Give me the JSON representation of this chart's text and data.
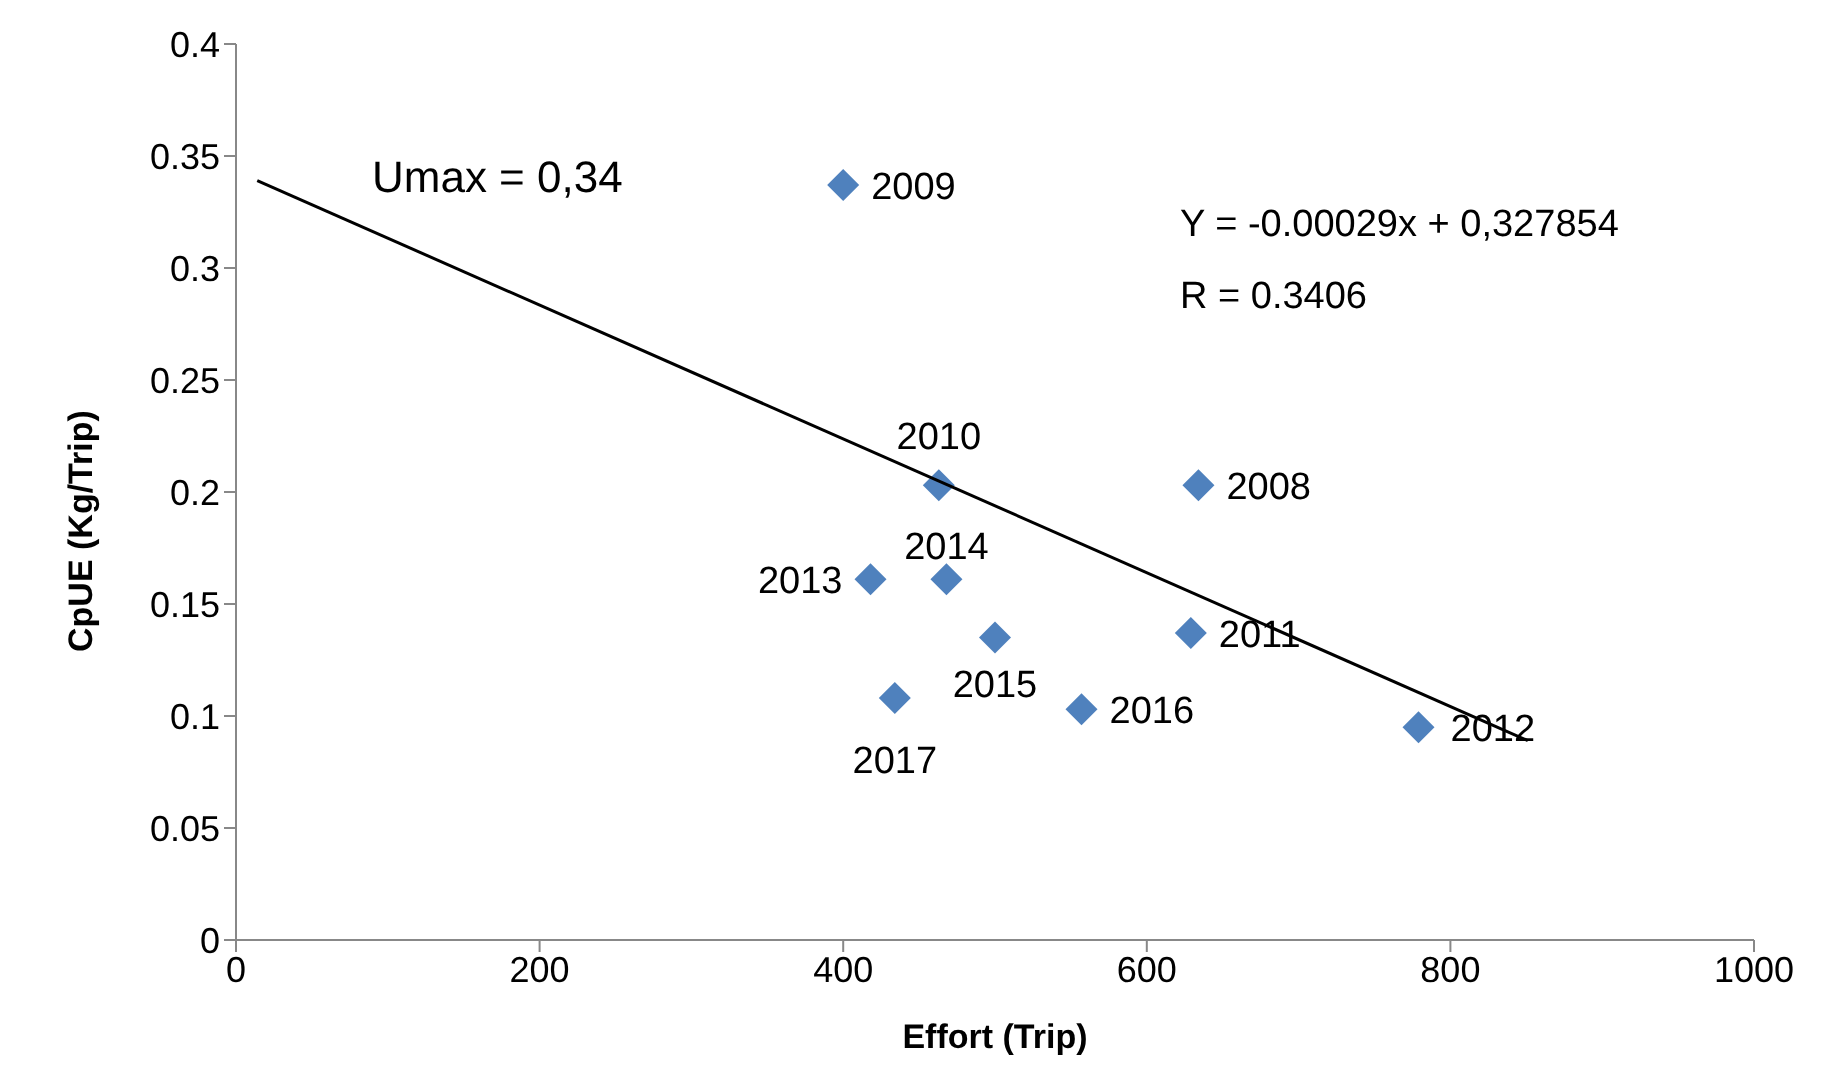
{
  "chart_data": {
    "type": "scatter",
    "xlabel": "Effort (Trip)",
    "ylabel": "CpUE (Kg/Trip)",
    "x": [
      400,
      463,
      634,
      418,
      468,
      500,
      629,
      434,
      557,
      779
    ],
    "values": [
      0.337,
      0.203,
      0.203,
      0.161,
      0.161,
      0.135,
      0.137,
      0.108,
      0.103,
      0.095
    ],
    "color": "#4f81bd",
    "marker": "diamond",
    "series": [
      {
        "type": "line",
        "x": [
          14,
          851
        ],
        "values": [
          0.339,
          0.089
        ],
        "color": "#000000",
        "marker": "none"
      }
    ],
    "xlim": [
      0,
      1000
    ],
    "xticks": [
      0,
      200,
      400,
      600,
      800,
      1000
    ],
    "ylim": [
      0,
      0.4
    ],
    "yticks": [
      0,
      0.05,
      0.1,
      0.15,
      0.2,
      0.25,
      0.3,
      0.35,
      0.4
    ],
    "grid": false,
    "legend": false,
    "annotations": [
      "Umax = 0,34",
      "Y = -0.00029x + 0,327854",
      "R = 0.3406",
      {
        "text": "2009",
        "x": 400,
        "y": 0.337
      },
      {
        "text": "2010",
        "x": 463,
        "y": 0.203
      },
      {
        "text": "2008",
        "x": 634,
        "y": 0.203
      },
      {
        "text": "2013",
        "x": 418,
        "y": 0.161
      },
      {
        "text": "2014",
        "x": 468,
        "y": 0.161
      },
      {
        "text": "2015",
        "x": 500,
        "y": 0.135
      },
      {
        "text": "2011",
        "x": 629,
        "y": 0.137
      },
      {
        "text": "2017",
        "x": 434,
        "y": 0.108
      },
      {
        "text": "2016",
        "x": 557,
        "y": 0.103
      },
      {
        "text": "2012",
        "x": 779,
        "y": 0.095
      }
    ]
  }
}
